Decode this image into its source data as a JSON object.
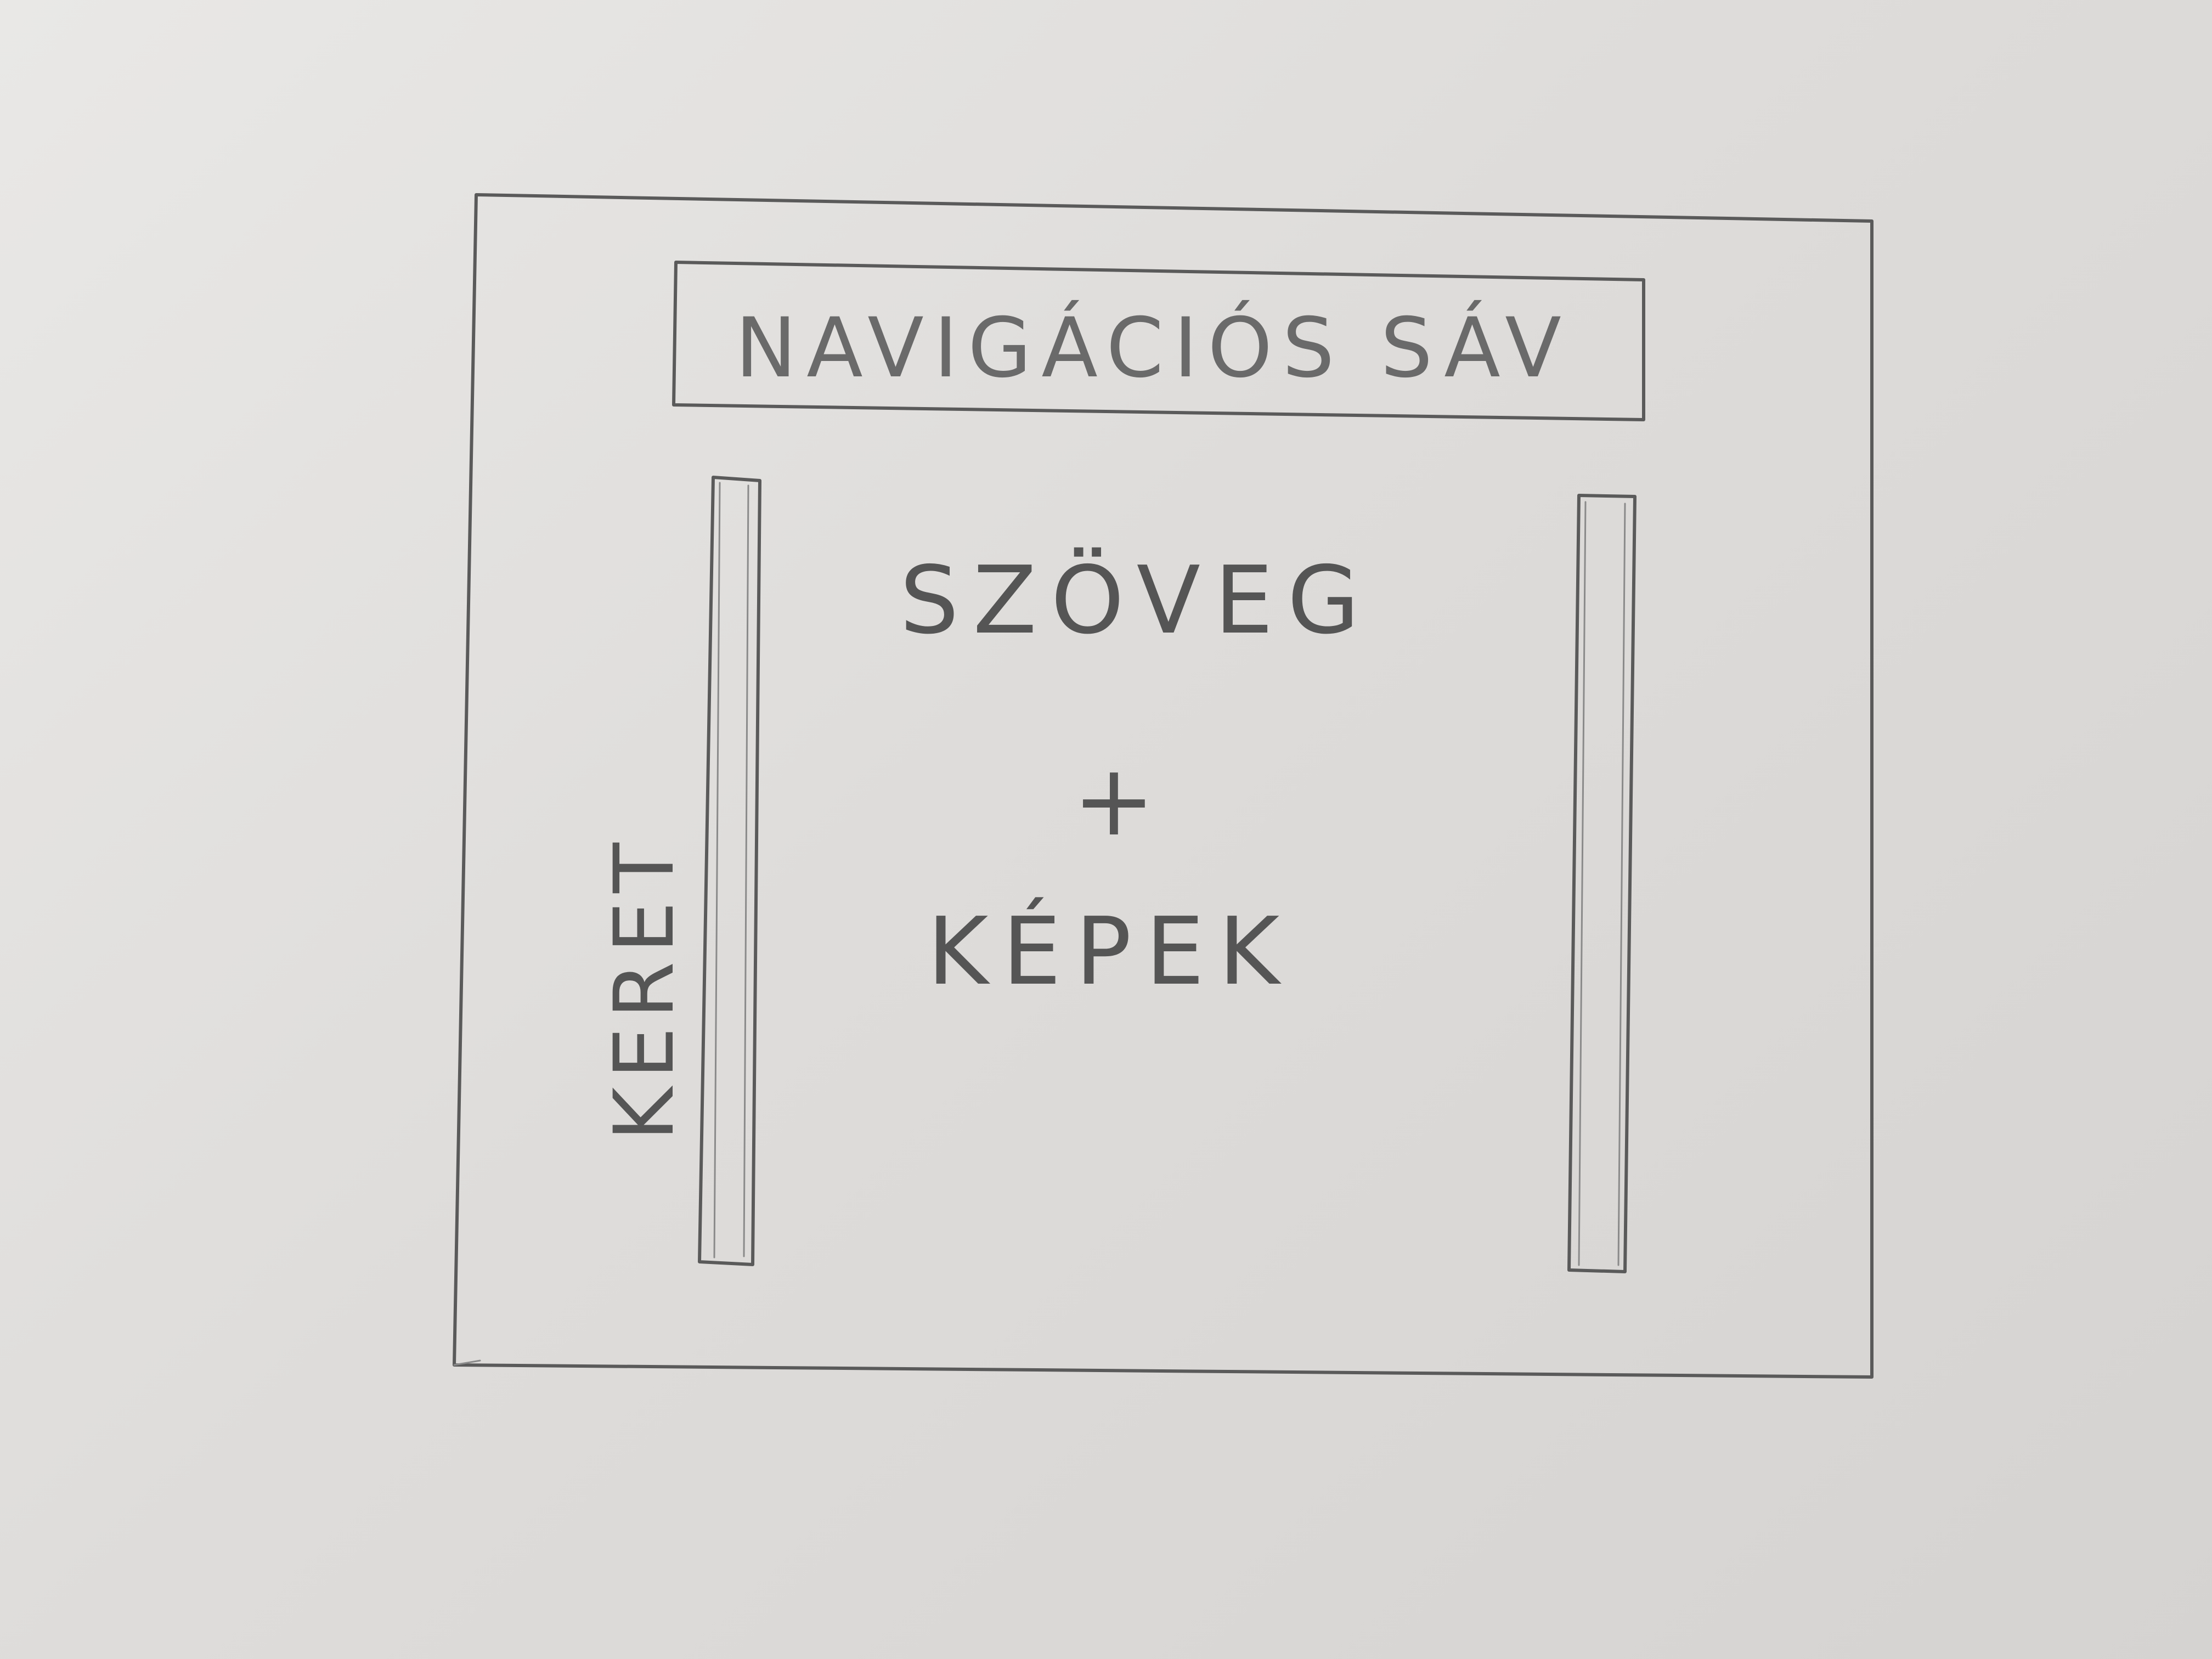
{
  "sketch": {
    "navbar_label": "NAVIGÁCIÓS SÁV",
    "main_text_label": "SZÖVEG",
    "plus_sign": "+",
    "main_images_label": "KÉPEK",
    "frame_label": "KERET",
    "colors": {
      "paper": "#e2e1df",
      "pencil": "#5a5a5a"
    }
  }
}
